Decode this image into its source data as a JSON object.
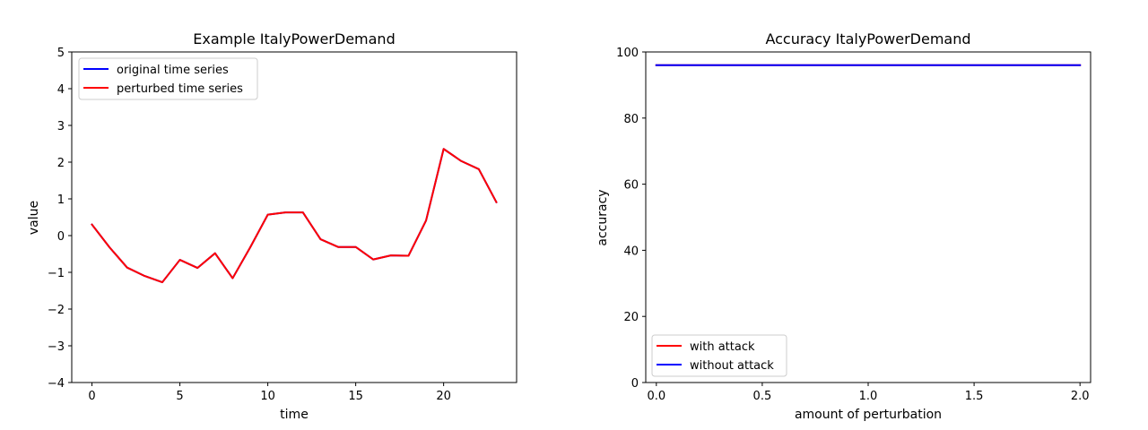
{
  "chart_data": [
    {
      "type": "line",
      "title": "Example ItalyPowerDemand",
      "xlabel": "time",
      "ylabel": "value",
      "xlim": [
        -1.15,
        24.15
      ],
      "ylim": [
        -4,
        5
      ],
      "xticks": [
        0,
        5,
        10,
        15,
        20
      ],
      "yticks": [
        -4,
        -3,
        -2,
        -1,
        0,
        1,
        2,
        3,
        4,
        5
      ],
      "xtick_labels": [
        "0",
        "5",
        "10",
        "15",
        "20"
      ],
      "ytick_labels": [
        "−4",
        "−3",
        "−2",
        "−1",
        "0",
        "1",
        "2",
        "3",
        "4",
        "5"
      ],
      "grid": false,
      "legend_position": "upper left",
      "x": [
        0,
        1,
        2,
        3,
        4,
        5,
        6,
        7,
        8,
        9,
        10,
        11,
        12,
        13,
        14,
        15,
        16,
        17,
        18,
        19,
        20,
        21,
        22,
        23
      ],
      "series": [
        {
          "name": "original time series",
          "color": "#0000ff",
          "values": [
            0.3,
            -0.32,
            -0.87,
            -1.1,
            -1.27,
            -0.66,
            -0.88,
            -0.48,
            -1.16,
            -0.32,
            0.57,
            0.63,
            0.63,
            -0.1,
            -0.31,
            -0.31,
            -0.65,
            -0.54,
            -0.55,
            0.41,
            2.36,
            2.03,
            1.81,
            0.91
          ]
        },
        {
          "name": "perturbed time series",
          "color": "#ff0000",
          "values": [
            0.3,
            -0.32,
            -0.87,
            -1.1,
            -1.27,
            -0.66,
            -0.88,
            -0.48,
            -1.16,
            -0.32,
            0.57,
            0.63,
            0.63,
            -0.1,
            -0.31,
            -0.31,
            -0.65,
            -0.54,
            -0.55,
            0.41,
            2.36,
            2.03,
            1.81,
            0.91
          ]
        }
      ]
    },
    {
      "type": "line",
      "title": "Accuracy ItalyPowerDemand",
      "xlabel": "amount of perturbation",
      "ylabel": "accuracy",
      "xlim": [
        -0.05,
        2.05
      ],
      "ylim": [
        0,
        100
      ],
      "xticks": [
        0.0,
        0.5,
        1.0,
        1.5,
        2.0
      ],
      "yticks": [
        0,
        20,
        40,
        60,
        80,
        100
      ],
      "xtick_labels": [
        "0.0",
        "0.5",
        "1.0",
        "1.5",
        "2.0"
      ],
      "ytick_labels": [
        "0",
        "20",
        "40",
        "60",
        "80",
        "100"
      ],
      "grid": false,
      "legend_position": "lower left",
      "x": [
        0.0,
        2.0
      ],
      "series": [
        {
          "name": "with attack",
          "color": "#ff0000",
          "values": [
            96,
            96
          ]
        },
        {
          "name": "without attack",
          "color": "#0000ff",
          "values": [
            96,
            96
          ]
        }
      ]
    }
  ]
}
